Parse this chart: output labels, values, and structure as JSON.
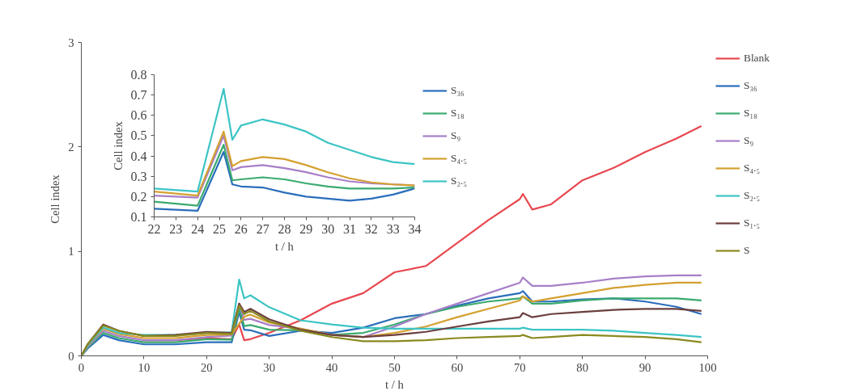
{
  "chart_data": [
    {
      "type": "line",
      "xlabel": "t / h",
      "ylabel": "Cell index",
      "xlim": [
        0,
        100
      ],
      "ylim": [
        0,
        3
      ],
      "xticks": [
        0,
        10,
        20,
        30,
        40,
        50,
        60,
        70,
        80,
        90,
        100
      ],
      "yticks": [
        0,
        1,
        2,
        3
      ],
      "grid": false,
      "legend": "right",
      "marker": "none",
      "line_style": "solid",
      "x": [
        0,
        1,
        3.5,
        6,
        10,
        15,
        20,
        24,
        25.2,
        26,
        27,
        30,
        35,
        40,
        45,
        50,
        55,
        60,
        65,
        70,
        70.5,
        72,
        75,
        80,
        85,
        90,
        95,
        99
      ],
      "series": [
        {
          "name": "Blank",
          "color": "#e8474f",
          "values": [
            null,
            null,
            null,
            null,
            0.15,
            0.15,
            0.17,
            0.16,
            0.3,
            0.15,
            0.16,
            0.22,
            0.34,
            0.5,
            0.6,
            0.8,
            0.86,
            1.08,
            1.3,
            1.5,
            1.55,
            1.4,
            1.45,
            1.68,
            1.8,
            1.95,
            2.08,
            2.2
          ]
        },
        {
          "name": "S₃₆",
          "color": "#2a6ebb",
          "values": [
            0,
            0.07,
            0.2,
            0.15,
            0.11,
            0.11,
            0.13,
            0.13,
            0.42,
            0.25,
            0.245,
            0.19,
            0.24,
            0.22,
            0.27,
            0.36,
            0.4,
            0.48,
            0.55,
            0.6,
            0.62,
            0.52,
            0.52,
            0.54,
            0.55,
            0.52,
            0.47,
            0.4
          ]
        },
        {
          "name": "S₁₈",
          "color": "#3aaa6e",
          "values": [
            0,
            0.08,
            0.22,
            0.17,
            0.13,
            0.13,
            0.16,
            0.155,
            0.455,
            0.285,
            0.295,
            0.25,
            0.245,
            0.2,
            0.22,
            0.3,
            0.4,
            0.47,
            0.52,
            0.55,
            0.57,
            0.5,
            0.5,
            0.53,
            0.55,
            0.55,
            0.55,
            0.53
          ]
        },
        {
          "name": "S₉",
          "color": "#a77fc8",
          "values": [
            0,
            0.09,
            0.24,
            0.19,
            0.15,
            0.15,
            0.18,
            0.195,
            0.5,
            0.345,
            0.355,
            0.295,
            0.26,
            0.2,
            0.18,
            0.28,
            0.4,
            0.5,
            0.6,
            0.7,
            0.75,
            0.67,
            0.67,
            0.7,
            0.74,
            0.76,
            0.77,
            0.77
          ]
        },
        {
          "name": "S₄.₅",
          "color": "#d4a030",
          "values": [
            0,
            0.1,
            0.26,
            0.21,
            0.17,
            0.17,
            0.2,
            0.205,
            null,
            0.375,
            0.395,
            0.32,
            0.26,
            0.2,
            0.18,
            0.22,
            0.28,
            0.37,
            0.45,
            0.53,
            0.57,
            0.52,
            0.55,
            0.6,
            0.65,
            0.68,
            0.7,
            0.7
          ]
        },
        {
          "name": "S₂.₅",
          "color": "#3cc4c4",
          "values": [
            0,
            0.1,
            0.27,
            0.22,
            0.2,
            0.2,
            0.22,
            0.225,
            0.73,
            0.55,
            0.58,
            0.465,
            0.34,
            0.3,
            0.27,
            0.26,
            0.26,
            0.26,
            0.26,
            0.26,
            0.27,
            0.25,
            0.25,
            0.25,
            0.24,
            0.22,
            0.2,
            0.18
          ]
        },
        {
          "name": "S₁.₅",
          "color": "#6b3f3f",
          "values": [
            0,
            0.11,
            0.3,
            0.24,
            0.19,
            0.2,
            0.23,
            0.22,
            0.5,
            0.42,
            0.45,
            0.35,
            0.25,
            0.2,
            0.18,
            0.2,
            0.23,
            0.28,
            0.33,
            0.37,
            0.41,
            0.37,
            0.4,
            0.42,
            0.44,
            0.45,
            0.45,
            0.43
          ]
        },
        {
          "name": "S",
          "color": "#8a8a20",
          "values": [
            0,
            0.11,
            0.29,
            0.24,
            0.19,
            0.19,
            0.22,
            0.21,
            0.48,
            0.4,
            0.43,
            0.33,
            0.24,
            0.18,
            0.14,
            0.14,
            0.15,
            0.17,
            0.18,
            0.19,
            0.2,
            0.17,
            0.18,
            0.2,
            0.19,
            0.18,
            0.16,
            0.13
          ]
        }
      ]
    },
    {
      "type": "line",
      "xlabel": "t / h",
      "ylabel": "Cell index",
      "xlim": [
        22,
        34
      ],
      "ylim": [
        0.1,
        0.8
      ],
      "xticks": [
        22,
        23,
        24,
        25,
        26,
        27,
        28,
        29,
        30,
        31,
        32,
        33,
        34
      ],
      "yticks": [
        0.1,
        0.2,
        0.3,
        0.4,
        0.5,
        0.6,
        0.7,
        0.8
      ],
      "grid": false,
      "legend": "right",
      "marker": "none",
      "line_style": "solid",
      "x": [
        22,
        24,
        25.2,
        25.6,
        26,
        27,
        28,
        29,
        30,
        31,
        32,
        33,
        34
      ],
      "series": [
        {
          "name": "S₃₆",
          "color": "#2a6ebb",
          "values": [
            0.14,
            0.13,
            0.42,
            0.26,
            0.25,
            0.245,
            0.22,
            0.2,
            0.19,
            0.18,
            0.19,
            0.21,
            0.24
          ]
        },
        {
          "name": "S₁₈",
          "color": "#3aaa6e",
          "values": [
            0.175,
            0.155,
            0.455,
            0.28,
            0.285,
            0.295,
            0.285,
            0.265,
            0.25,
            0.24,
            0.24,
            0.24,
            0.245
          ]
        },
        {
          "name": "S₉",
          "color": "#a77fc8",
          "values": [
            0.205,
            0.195,
            0.5,
            0.33,
            0.345,
            0.355,
            0.34,
            0.32,
            0.295,
            0.275,
            0.265,
            0.26,
            0.255
          ]
        },
        {
          "name": "S₄.₅",
          "color": "#d4a030",
          "values": [
            0.225,
            0.205,
            0.52,
            0.35,
            0.375,
            0.395,
            0.385,
            0.355,
            0.32,
            0.29,
            0.27,
            0.26,
            0.255
          ]
        },
        {
          "name": "S₂.₅",
          "color": "#3cc4c4",
          "values": [
            0.24,
            0.225,
            0.73,
            0.48,
            0.55,
            0.58,
            0.555,
            0.52,
            0.465,
            0.43,
            0.395,
            0.37,
            0.36
          ]
        }
      ]
    }
  ]
}
